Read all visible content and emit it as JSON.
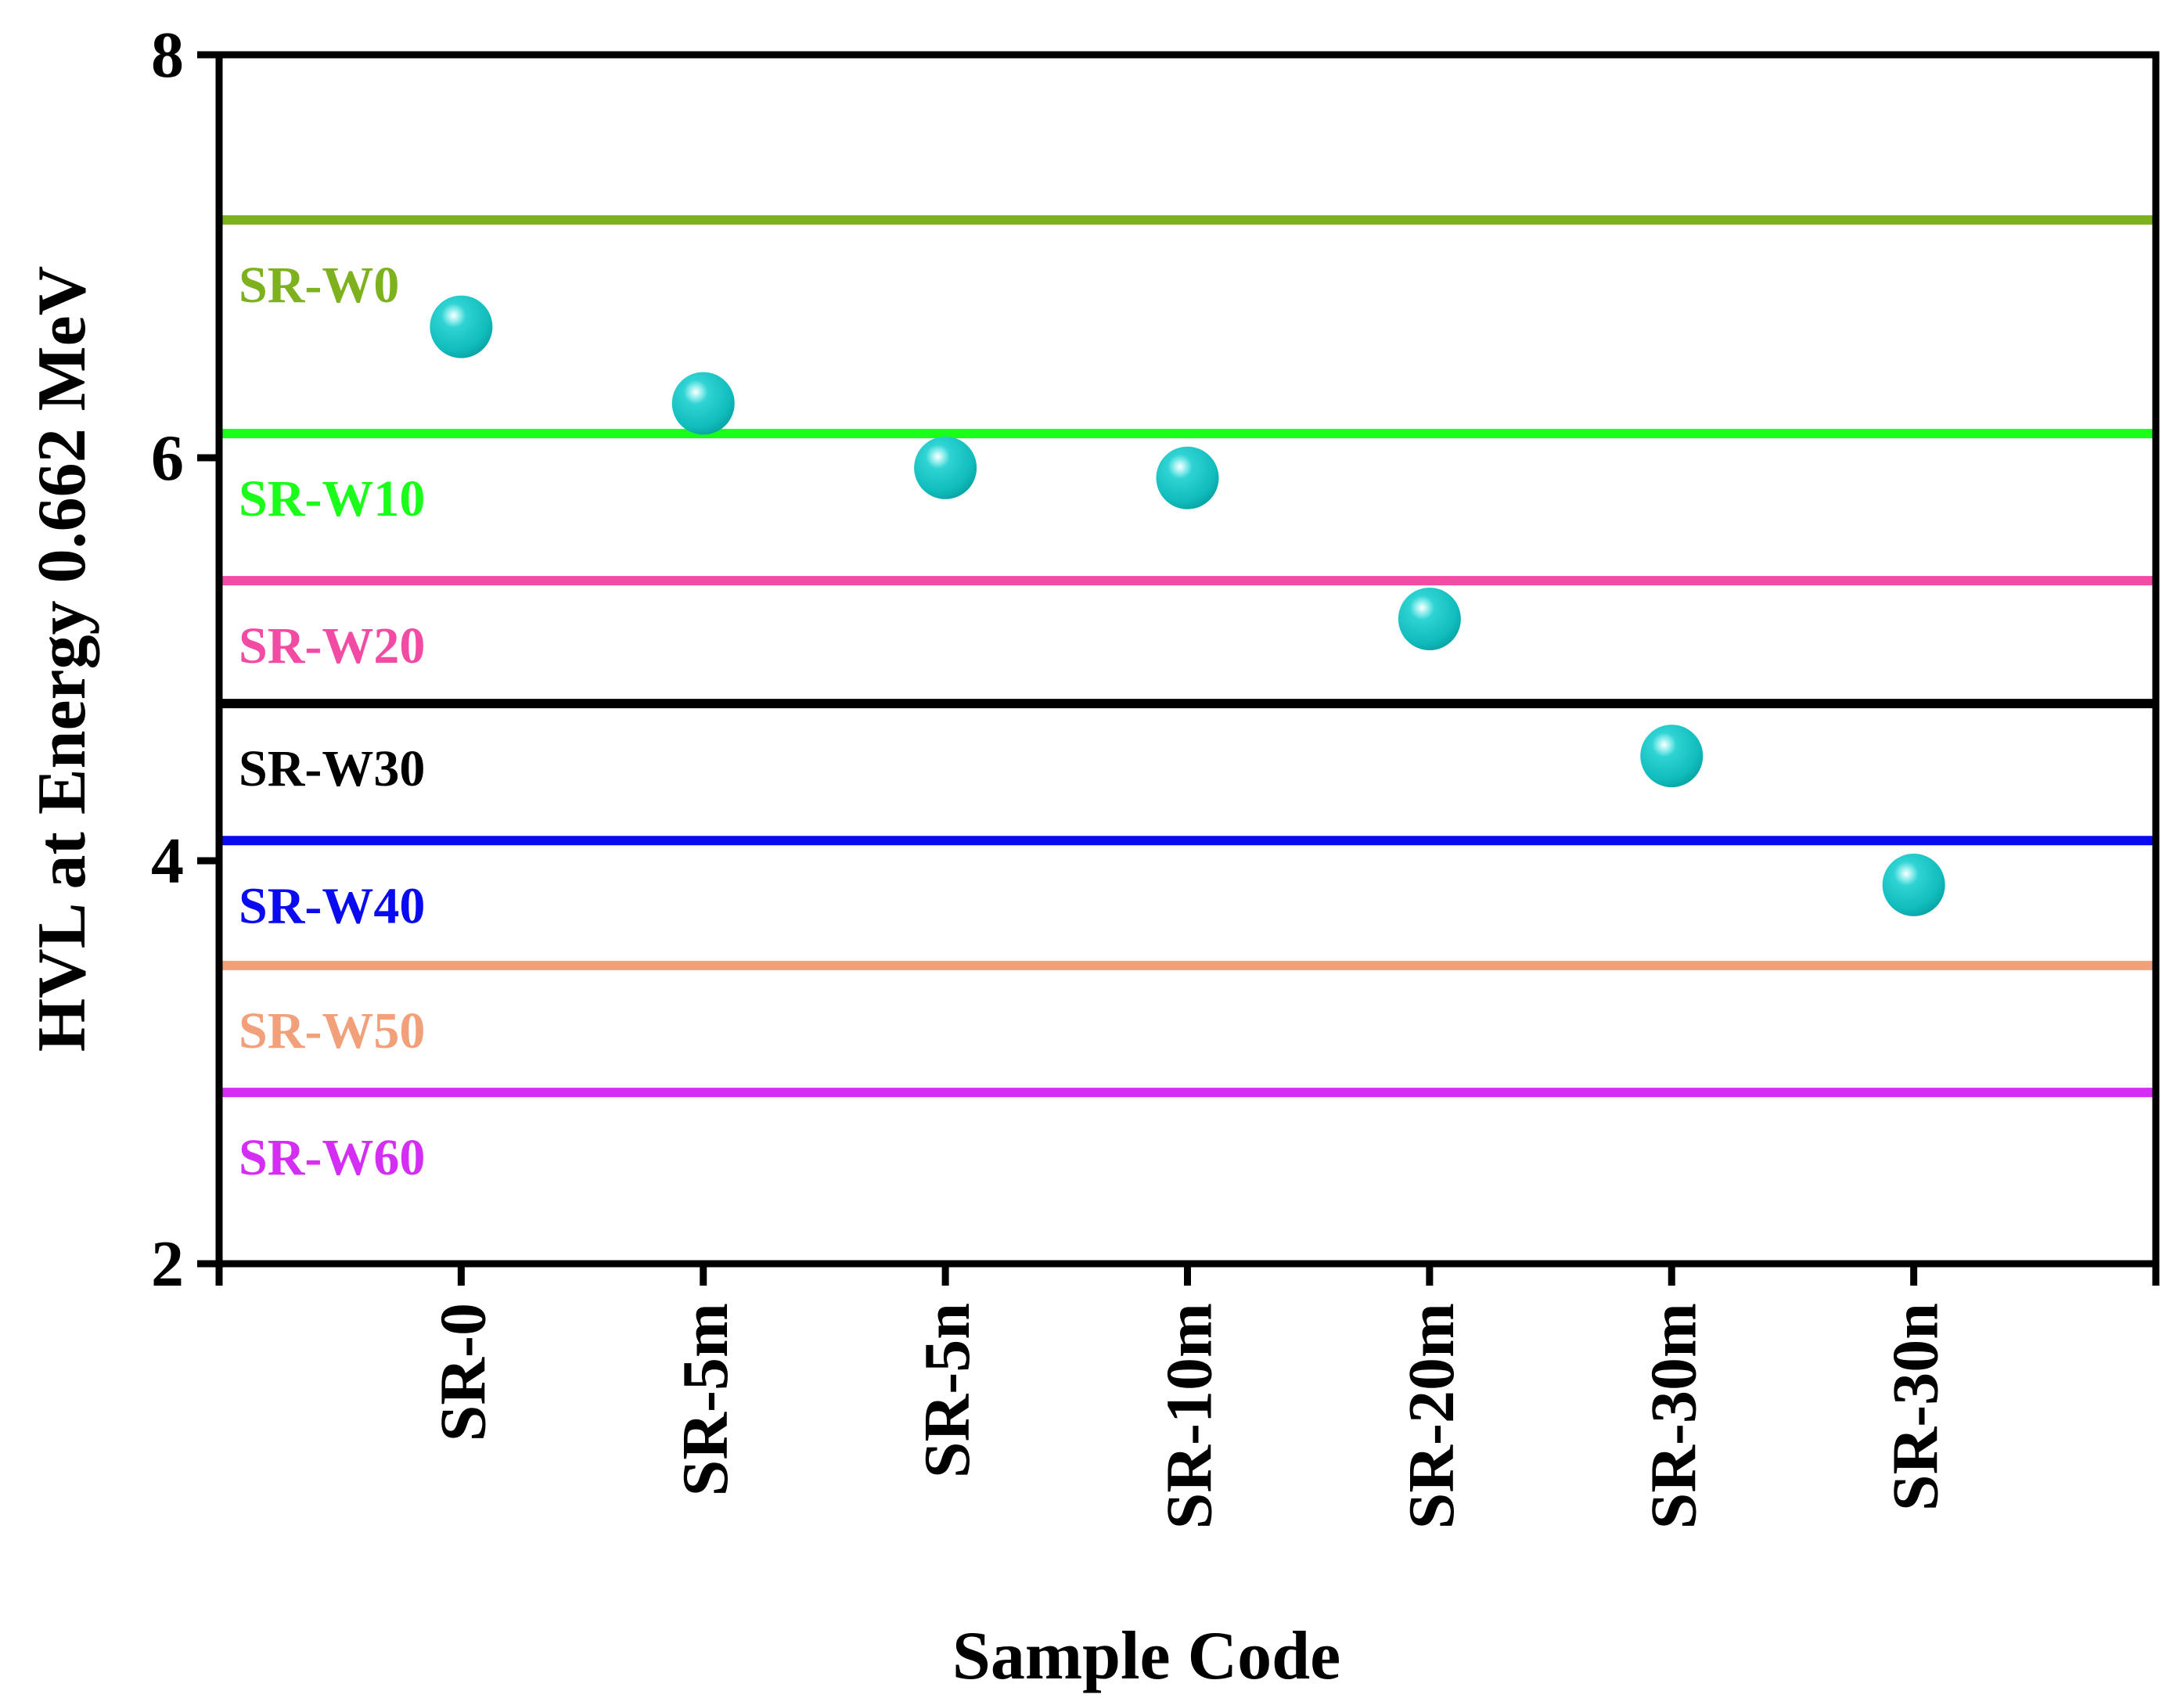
{
  "chart_data": {
    "type": "scatter",
    "title": "",
    "xlabel": "Sample Code",
    "ylabel": "HVL at Energy 0.662 MeV",
    "ylim": [
      2,
      8
    ],
    "yticks": [
      "2",
      "4",
      "6",
      "8"
    ],
    "categories": [
      "SR-0",
      "SR-5m",
      "SR-5n",
      "SR-10m",
      "SR-20m",
      "SR-30m",
      "SR-30n"
    ],
    "series": [
      {
        "name": "HVL",
        "color": "#19C8C8",
        "values": [
          6.65,
          6.27,
          5.95,
          5.9,
          5.2,
          4.52,
          3.88
        ]
      }
    ],
    "reference_lines": [
      {
        "label": "SR-W0",
        "value": 7.18,
        "color": "#7DB21E"
      },
      {
        "label": "SR-W10",
        "value": 6.12,
        "color": "#19FF19"
      },
      {
        "label": "SR-W20",
        "value": 5.39,
        "color": "#F24BA3"
      },
      {
        "label": "SR-W30",
        "value": 4.78,
        "color": "#000000"
      },
      {
        "label": "SR-W40",
        "value": 4.1,
        "color": "#0A0AF0"
      },
      {
        "label": "SR-W50",
        "value": 3.48,
        "color": "#F2A07A"
      },
      {
        "label": "SR-W60",
        "value": 2.85,
        "color": "#D42EF5"
      }
    ],
    "grid": false,
    "legend": "inline-left"
  }
}
